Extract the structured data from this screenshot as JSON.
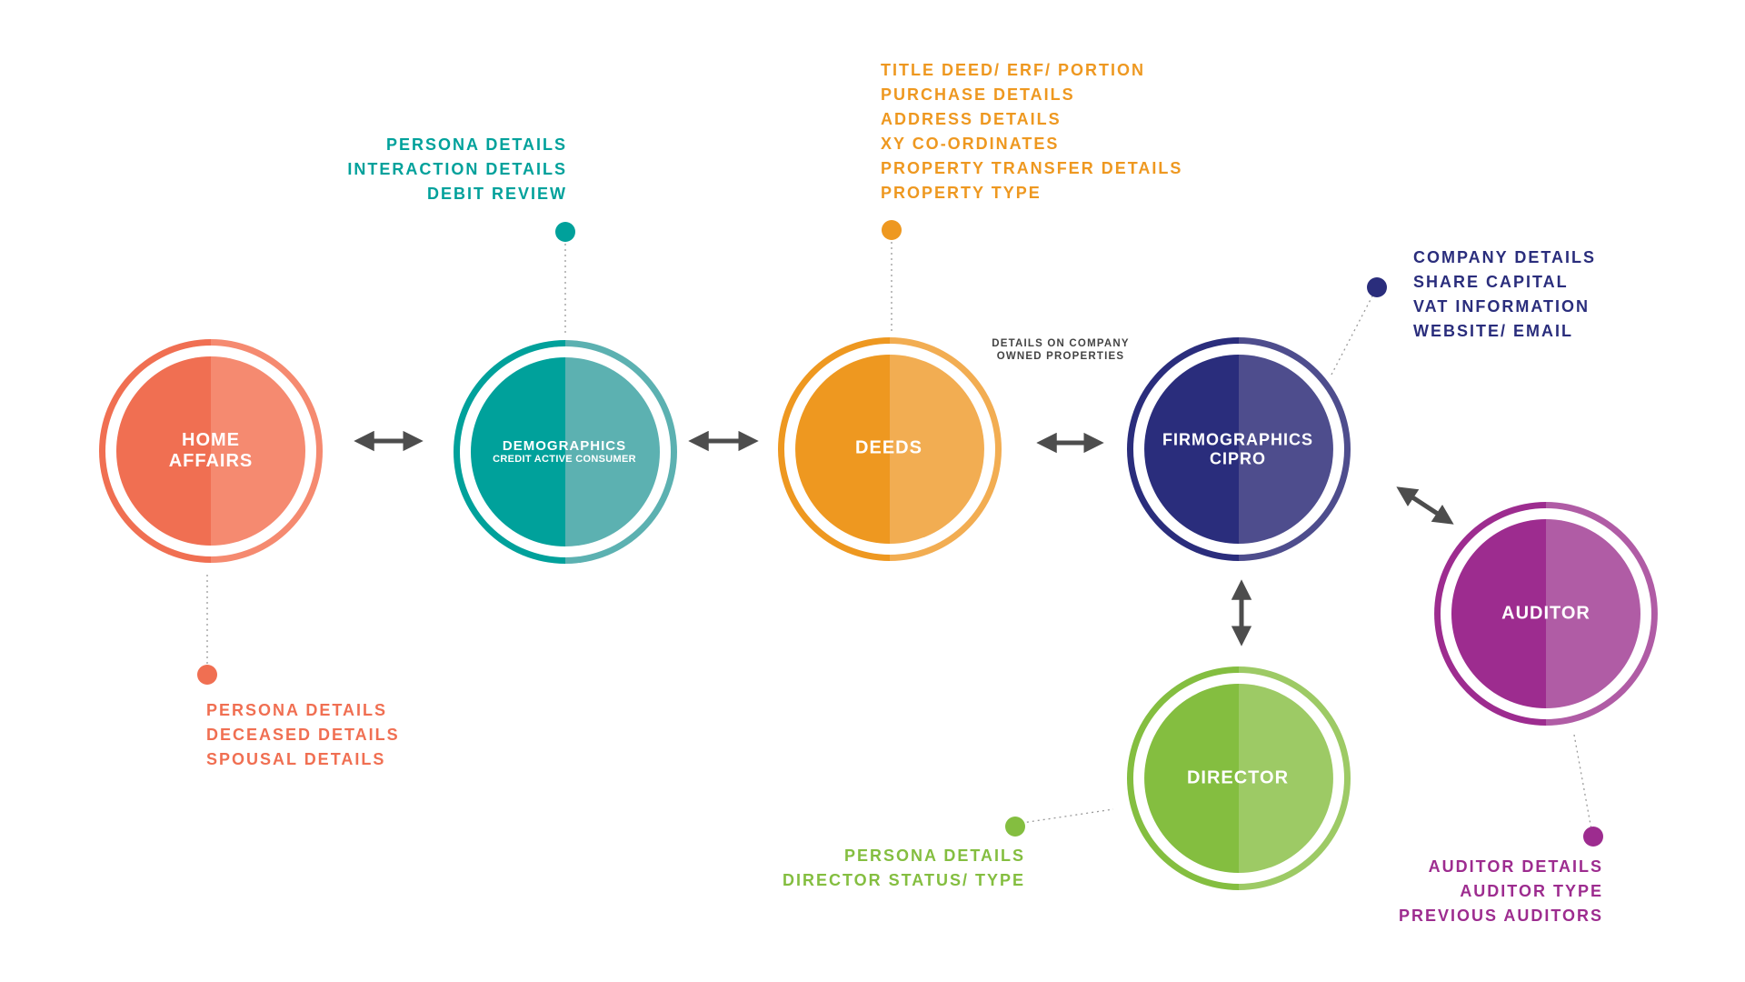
{
  "nodes": {
    "home_affairs": {
      "line1": "HOME",
      "line2": "AFFAIRS",
      "color_dark": "#F06F52",
      "color_light": "#F58A70"
    },
    "demographics": {
      "title": "DEMOGRAPHICS",
      "subtitle": "CREDIT ACTIVE CONSUMER",
      "color_dark": "#00A19B",
      "color_light": "#5CB1B1"
    },
    "deeds": {
      "title": "DEEDS",
      "color_dark": "#EE9820",
      "color_light": "#F2AD52"
    },
    "firmographics": {
      "line1": "FIRMOGRAPHICS",
      "line2": "CIPRO",
      "color_dark": "#2A2D7C",
      "color_light": "#4E4D8D"
    },
    "director": {
      "title": "DIRECTOR",
      "color_dark": "#84BE40",
      "color_light": "#9DCA65"
    },
    "auditor": {
      "title": "AUDITOR",
      "color_dark": "#9D2C8F",
      "color_light": "#B05CA5"
    }
  },
  "details": {
    "home_affairs": [
      "PERSONA DETAILS",
      "DECEASED DETAILS",
      "SPOUSAL DETAILS"
    ],
    "demographics": [
      "PERSONA DETAILS",
      "INTERACTION DETAILS",
      "DEBIT REVIEW"
    ],
    "deeds": [
      "TITLE DEED/ ERF/ PORTION",
      "PURCHASE DETAILS",
      "ADDRESS DETAILS",
      "XY CO-ORDINATES",
      "PROPERTY TRANSFER DETAILS",
      "PROPERTY TYPE"
    ],
    "firmographics": [
      "COMPANY DETAILS",
      "SHARE CAPITAL",
      "VAT INFORMATION",
      "WEBSITE/ EMAIL"
    ],
    "director": [
      "PERSONA DETAILS",
      "DIRECTOR STATUS/ TYPE"
    ],
    "auditor": [
      "AUDITOR DETAILS",
      "AUDITOR TYPE",
      "PREVIOUS AUDITORS"
    ]
  },
  "connector_note": {
    "line1": "DETAILS ON COMPANY",
    "line2": "OWNED PROPERTIES"
  },
  "colors": {
    "arrow": "#4D4D4D",
    "dotted_line": "#9A9A9A"
  }
}
